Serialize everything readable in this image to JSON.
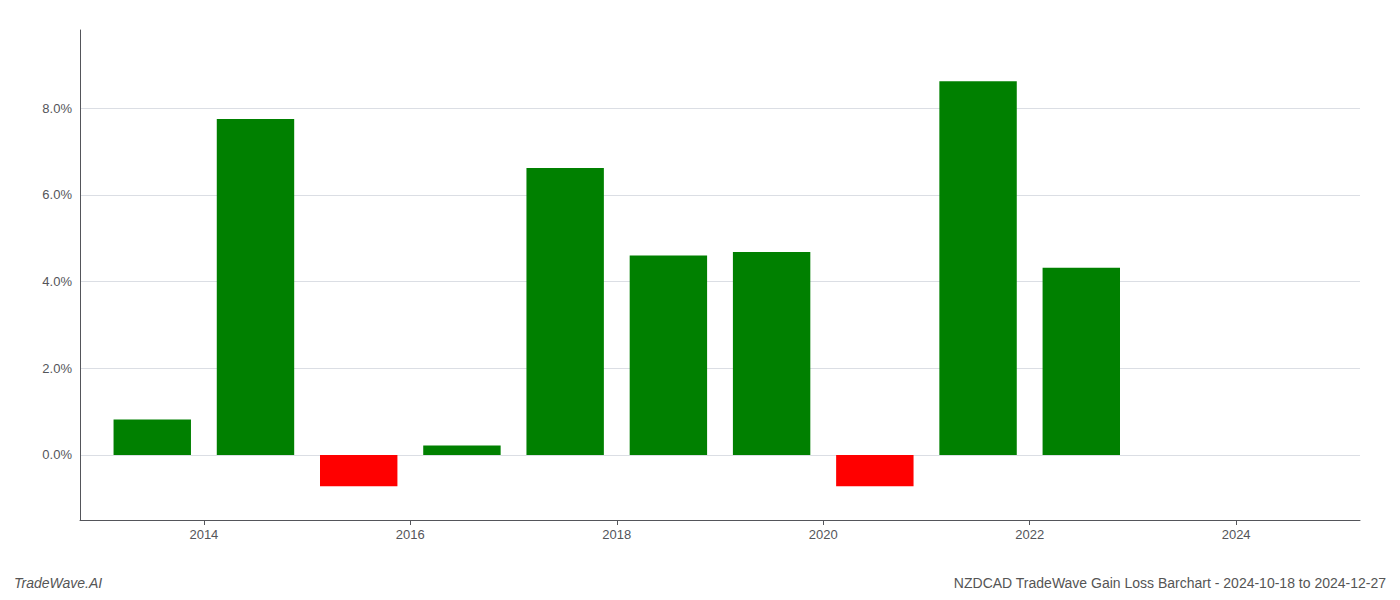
{
  "chart_data": {
    "type": "bar",
    "x": [
      2013.5,
      2014.5,
      2015.5,
      2016.5,
      2017.5,
      2018.5,
      2019.5,
      2020.5,
      2021.5,
      2022.5
    ],
    "values": [
      0.0082,
      0.0775,
      -0.0072,
      0.0022,
      0.0662,
      0.046,
      0.0468,
      -0.0072,
      0.0862,
      0.0432
    ],
    "colors": [
      "#008000",
      "#008000",
      "#ff0000",
      "#008000",
      "#008000",
      "#008000",
      "#008000",
      "#ff0000",
      "#008000",
      "#008000"
    ],
    "xlim": [
      2012.8,
      2025.2
    ],
    "xticks": [
      2014,
      2016,
      2018,
      2020,
      2022,
      2024
    ],
    "ylim": [
      -0.015,
      0.098
    ],
    "yticks": [
      {
        "value": 0.0,
        "label": "0.0%"
      },
      {
        "value": 0.02,
        "label": "2.0%"
      },
      {
        "value": 0.04,
        "label": "4.0%"
      },
      {
        "value": 0.06,
        "label": "6.0%"
      },
      {
        "value": 0.08,
        "label": "8.0%"
      }
    ],
    "grid": true,
    "annotations": [
      "TradeWave.AI",
      "NZDCAD TradeWave Gain Loss Barchart - 2024-10-18 to 2024-12-27"
    ]
  }
}
